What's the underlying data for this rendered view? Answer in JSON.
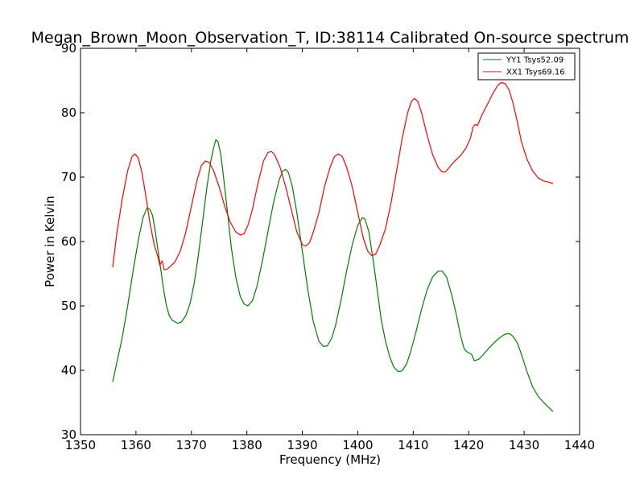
{
  "chart_data": {
    "type": "line",
    "title": "Megan_Brown_Moon_Observation_T, ID:38114 Calibrated On-source spectrum",
    "xlabel": "Frequency (MHz)",
    "ylabel": "Power in Kelvin",
    "xlim": [
      1350,
      1440
    ],
    "ylim": [
      30,
      90
    ],
    "xticks": [
      1350,
      1360,
      1370,
      1380,
      1390,
      1400,
      1410,
      1420,
      1430,
      1440
    ],
    "yticks": [
      30,
      40,
      50,
      60,
      70,
      80,
      90
    ],
    "grid": false,
    "legend_position": "top-right",
    "series": [
      {
        "name": "YY1 Tsys52.09",
        "color": "#008000",
        "points": [
          [
            1355.8,
            38.2
          ],
          [
            1356.5,
            41.0
          ],
          [
            1357.5,
            45.0
          ],
          [
            1358.5,
            50.0
          ],
          [
            1359.5,
            55.5
          ],
          [
            1360.5,
            60.5
          ],
          [
            1361.3,
            63.8
          ],
          [
            1362.0,
            65.2
          ],
          [
            1362.5,
            65.0
          ],
          [
            1363.0,
            64.0
          ],
          [
            1363.5,
            61.5
          ],
          [
            1364.0,
            58.5
          ],
          [
            1364.5,
            55.5
          ],
          [
            1365.0,
            52.5
          ],
          [
            1365.5,
            50.0
          ],
          [
            1366.0,
            48.5
          ],
          [
            1366.5,
            47.8
          ],
          [
            1367.5,
            47.3
          ],
          [
            1368.2,
            47.5
          ],
          [
            1369.0,
            48.5
          ],
          [
            1369.8,
            50.5
          ],
          [
            1370.5,
            53.5
          ],
          [
            1371.2,
            57.5
          ],
          [
            1372.0,
            63.0
          ],
          [
            1372.8,
            68.5
          ],
          [
            1373.5,
            72.5
          ],
          [
            1374.0,
            74.5
          ],
          [
            1374.4,
            75.8
          ],
          [
            1374.8,
            75.5
          ],
          [
            1375.3,
            73.5
          ],
          [
            1375.8,
            70.0
          ],
          [
            1376.5,
            64.5
          ],
          [
            1377.2,
            59.0
          ],
          [
            1378.0,
            54.5
          ],
          [
            1378.8,
            51.5
          ],
          [
            1379.5,
            50.3
          ],
          [
            1380.2,
            50.0
          ],
          [
            1381.0,
            50.8
          ],
          [
            1381.8,
            53.0
          ],
          [
            1382.8,
            57.0
          ],
          [
            1383.8,
            61.5
          ],
          [
            1384.8,
            66.0
          ],
          [
            1385.8,
            69.5
          ],
          [
            1386.5,
            71.0
          ],
          [
            1387.0,
            71.2
          ],
          [
            1387.5,
            70.7
          ],
          [
            1388.2,
            68.5
          ],
          [
            1389.0,
            64.5
          ],
          [
            1390.0,
            58.5
          ],
          [
            1391.0,
            52.5
          ],
          [
            1392.0,
            47.5
          ],
          [
            1393.0,
            44.5
          ],
          [
            1393.8,
            43.7
          ],
          [
            1394.5,
            43.8
          ],
          [
            1395.3,
            45.0
          ],
          [
            1396.0,
            47.0
          ],
          [
            1397.0,
            51.0
          ],
          [
            1398.0,
            55.5
          ],
          [
            1399.0,
            59.5
          ],
          [
            1400.0,
            62.5
          ],
          [
            1400.8,
            63.7
          ],
          [
            1401.3,
            63.5
          ],
          [
            1402.0,
            61.5
          ],
          [
            1402.8,
            57.0
          ],
          [
            1403.5,
            52.5
          ],
          [
            1404.2,
            48.0
          ],
          [
            1405.0,
            44.5
          ],
          [
            1405.8,
            42.0
          ],
          [
            1406.5,
            40.5
          ],
          [
            1407.3,
            39.8
          ],
          [
            1408.0,
            39.9
          ],
          [
            1408.8,
            41.0
          ],
          [
            1409.5,
            42.8
          ],
          [
            1410.5,
            46.0
          ],
          [
            1411.5,
            49.5
          ],
          [
            1412.5,
            52.5
          ],
          [
            1413.5,
            54.5
          ],
          [
            1414.5,
            55.4
          ],
          [
            1415.2,
            55.4
          ],
          [
            1416.0,
            54.5
          ],
          [
            1417.0,
            51.5
          ],
          [
            1417.8,
            48.5
          ],
          [
            1418.5,
            45.5
          ],
          [
            1419.2,
            43.3
          ],
          [
            1419.8,
            42.8
          ],
          [
            1420.5,
            42.5
          ],
          [
            1421.0,
            41.5
          ],
          [
            1421.8,
            41.7
          ],
          [
            1422.5,
            42.3
          ],
          [
            1423.5,
            43.3
          ],
          [
            1424.5,
            44.2
          ],
          [
            1425.5,
            45.0
          ],
          [
            1426.5,
            45.6
          ],
          [
            1427.3,
            45.7
          ],
          [
            1428.0,
            45.3
          ],
          [
            1428.8,
            44.2
          ],
          [
            1429.5,
            42.5
          ],
          [
            1430.5,
            39.8
          ],
          [
            1431.5,
            37.5
          ],
          [
            1432.5,
            36.0
          ],
          [
            1433.5,
            35.0
          ],
          [
            1434.5,
            34.2
          ],
          [
            1435.2,
            33.6
          ]
        ]
      },
      {
        "name": "XX1 Tsys69.16",
        "color": "#ff0000",
        "points": [
          [
            1355.8,
            56.0
          ],
          [
            1356.5,
            61.0
          ],
          [
            1357.5,
            66.5
          ],
          [
            1358.5,
            71.0
          ],
          [
            1359.3,
            73.2
          ],
          [
            1359.8,
            73.6
          ],
          [
            1360.4,
            73.0
          ],
          [
            1361.0,
            71.0
          ],
          [
            1361.8,
            67.0
          ],
          [
            1362.5,
            63.0
          ],
          [
            1363.3,
            59.5
          ],
          [
            1364.0,
            57.5
          ],
          [
            1364.3,
            56.3
          ],
          [
            1364.7,
            57.0
          ],
          [
            1365.1,
            55.6
          ],
          [
            1365.6,
            55.7
          ],
          [
            1366.3,
            56.2
          ],
          [
            1367.0,
            56.8
          ],
          [
            1368.0,
            58.5
          ],
          [
            1369.0,
            61.5
          ],
          [
            1370.0,
            65.5
          ],
          [
            1371.0,
            69.5
          ],
          [
            1371.8,
            71.8
          ],
          [
            1372.5,
            72.5
          ],
          [
            1373.2,
            72.3
          ],
          [
            1374.0,
            71.0
          ],
          [
            1375.0,
            68.5
          ],
          [
            1376.0,
            65.5
          ],
          [
            1377.0,
            63.0
          ],
          [
            1378.0,
            61.5
          ],
          [
            1378.8,
            61.0
          ],
          [
            1379.5,
            61.2
          ],
          [
            1380.2,
            62.5
          ],
          [
            1381.0,
            65.0
          ],
          [
            1382.0,
            69.0
          ],
          [
            1383.0,
            72.5
          ],
          [
            1383.8,
            73.8
          ],
          [
            1384.4,
            74.0
          ],
          [
            1385.0,
            73.5
          ],
          [
            1386.0,
            71.5
          ],
          [
            1387.0,
            68.5
          ],
          [
            1388.0,
            65.0
          ],
          [
            1389.0,
            61.5
          ],
          [
            1390.0,
            59.5
          ],
          [
            1390.6,
            59.3
          ],
          [
            1391.3,
            59.8
          ],
          [
            1392.0,
            61.5
          ],
          [
            1393.0,
            64.5
          ],
          [
            1394.0,
            68.5
          ],
          [
            1395.0,
            71.5
          ],
          [
            1395.8,
            73.2
          ],
          [
            1396.5,
            73.6
          ],
          [
            1397.2,
            73.2
          ],
          [
            1398.0,
            71.5
          ],
          [
            1399.0,
            68.5
          ],
          [
            1400.0,
            64.5
          ],
          [
            1401.0,
            60.5
          ],
          [
            1401.8,
            58.5
          ],
          [
            1402.5,
            57.8
          ],
          [
            1403.2,
            58.0
          ],
          [
            1404.0,
            59.5
          ],
          [
            1405.0,
            62.0
          ],
          [
            1406.0,
            66.0
          ],
          [
            1407.0,
            71.0
          ],
          [
            1408.0,
            76.0
          ],
          [
            1409.0,
            80.0
          ],
          [
            1409.7,
            81.8
          ],
          [
            1410.2,
            82.2
          ],
          [
            1410.8,
            81.8
          ],
          [
            1411.5,
            80.0
          ],
          [
            1412.5,
            76.5
          ],
          [
            1413.5,
            73.5
          ],
          [
            1414.5,
            71.5
          ],
          [
            1415.2,
            70.8
          ],
          [
            1415.8,
            70.8
          ],
          [
            1416.5,
            71.5
          ],
          [
            1417.5,
            72.5
          ],
          [
            1418.5,
            73.3
          ],
          [
            1419.5,
            74.5
          ],
          [
            1420.3,
            76.0
          ],
          [
            1420.8,
            77.8
          ],
          [
            1421.2,
            78.2
          ],
          [
            1421.6,
            78.0
          ],
          [
            1422.3,
            79.5
          ],
          [
            1423.5,
            81.5
          ],
          [
            1424.5,
            83.2
          ],
          [
            1425.3,
            84.3
          ],
          [
            1425.9,
            84.7
          ],
          [
            1426.6,
            84.5
          ],
          [
            1427.3,
            83.5
          ],
          [
            1428.0,
            81.5
          ],
          [
            1428.8,
            78.5
          ],
          [
            1429.5,
            75.5
          ],
          [
            1430.5,
            72.8
          ],
          [
            1431.5,
            71.0
          ],
          [
            1432.5,
            69.9
          ],
          [
            1433.5,
            69.4
          ],
          [
            1434.5,
            69.2
          ],
          [
            1435.2,
            69.0
          ]
        ]
      }
    ]
  }
}
